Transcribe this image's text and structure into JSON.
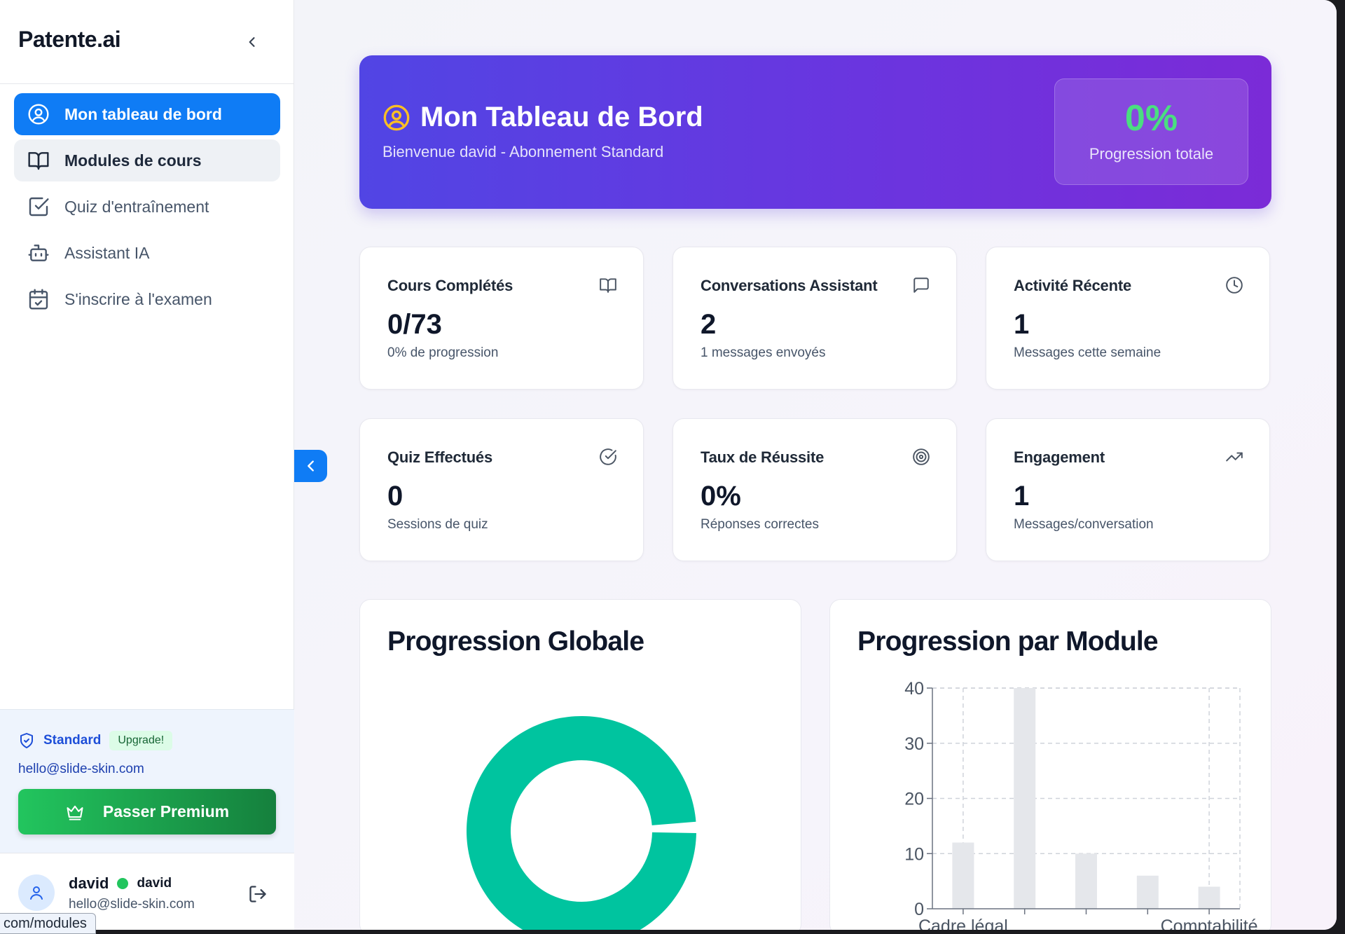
{
  "sidebar": {
    "brand": "Patente.ai",
    "nav": [
      {
        "label": "Mon tableau de bord",
        "icon": "user-circle-icon",
        "state": "active"
      },
      {
        "label": "Modules de cours",
        "icon": "book-open-icon",
        "state": "hover"
      },
      {
        "label": "Quiz d'entraînement",
        "icon": "check-square-icon",
        "state": "normal"
      },
      {
        "label": "Assistant IA",
        "icon": "bot-icon",
        "state": "normal"
      },
      {
        "label": "S'inscrire à l'examen",
        "icon": "calendar-check-icon",
        "state": "normal"
      }
    ],
    "plan": {
      "name": "Standard",
      "badge": "Upgrade!",
      "email": "hello@slide-skin.com",
      "premium_button": "Passer Premium"
    },
    "user": {
      "name": "david",
      "username": "david",
      "email": "hello@slide-skin.com"
    },
    "status_url": "com/modules"
  },
  "hero": {
    "title": "Mon Tableau de Bord",
    "subtitle": "Bienvenue david - Abonnement Standard",
    "stat_value": "0%",
    "stat_label": "Progression totale"
  },
  "cards": [
    {
      "title": "Cours Complétés",
      "value": "0/73",
      "sub": "0% de progression",
      "icon": "book-open-icon"
    },
    {
      "title": "Conversations Assistant",
      "value": "2",
      "sub": "1 messages envoyés",
      "icon": "message-square-icon"
    },
    {
      "title": "Activité Récente",
      "value": "1",
      "sub": "Messages cette semaine",
      "icon": "clock-icon"
    },
    {
      "title": "Quiz Effectués",
      "value": "0",
      "sub": "Sessions de quiz",
      "icon": "check-circle-icon"
    },
    {
      "title": "Taux de Réussite",
      "value": "0%",
      "sub": "Réponses correctes",
      "icon": "target-icon"
    },
    {
      "title": "Engagement",
      "value": "1",
      "sub": "Messages/conversation",
      "icon": "trending-up-icon"
    }
  ],
  "panels": {
    "global_title": "Progression Globale",
    "module_title": "Progression par Module"
  },
  "colors": {
    "accent": "#0f7cf5",
    "donut": "#00c49f",
    "bar": "#e5e7eb",
    "success": "#22c55e"
  },
  "chart_data": [
    {
      "type": "pie",
      "title": "Progression Globale",
      "slices": [
        {
          "label": "",
          "value": 99
        },
        {
          "label": "",
          "value": 1
        }
      ]
    },
    {
      "type": "bar",
      "title": "Progression par Module",
      "categories": [
        "Cadre légal",
        "",
        "",
        "",
        "Comptabilité"
      ],
      "values": [
        12,
        40,
        10,
        6,
        4
      ],
      "ylim": [
        0,
        40
      ],
      "yticks": [
        0,
        10,
        20,
        30,
        40
      ],
      "grid": true
    }
  ]
}
